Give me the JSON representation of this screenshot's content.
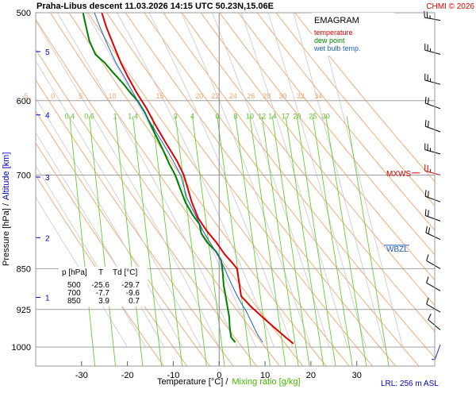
{
  "header": {
    "title": "Praha-Libus   descent   11.03.2026 14:15 UTC  50.23N,15.06E",
    "copyright": "CHMI © 2026"
  },
  "legend": {
    "title": "EMAGRAM",
    "items": [
      {
        "label": "temperature",
        "color": "#e00000"
      },
      {
        "label": "dew point",
        "color": "#008000"
      },
      {
        "label": "wet bulb temp.",
        "color": "#2060c0"
      }
    ]
  },
  "axes": {
    "xlabel_part1": "Temperature [°C]  /",
    "xlabel_part2": "Mixing ratio [g/kg]",
    "ylabel_part1": "Pressure [hPa]  /",
    "ylabel_part2": "Altitude [km]",
    "lrl": "LRL: 256 m ASL"
  },
  "stats_table": {
    "headers": [
      "p [hPa]",
      "T",
      "Td [°C]"
    ],
    "rows": [
      [
        "500",
        "-25.6",
        "-29.7"
      ],
      [
        "700",
        "-7.7",
        "-9.6"
      ],
      [
        "850",
        "3.9",
        "0.7"
      ]
    ]
  },
  "markers": {
    "mxws": "MXWS",
    "wbzl": "WBZL"
  },
  "colors": {
    "temperature": "#e00000",
    "dewpoint": "#008000",
    "wetbulb": "#2060c0",
    "dry_adiabat": "#f4a46a",
    "moist_adiabat": "#c8c8c8",
    "mixing_ratio": "#66cc33",
    "isobar": "#a0a0a0",
    "altitude": "#0000c0",
    "wind": "#000000",
    "wind_highlight": "#d00000",
    "wind_low": "#2020c0"
  },
  "chart_data": {
    "type": "line",
    "title": "EMAGRAM",
    "xlabel": "Temperature [°C] / Mixing ratio [g/kg]",
    "ylabel": "Pressure [hPa] / Altitude [km]",
    "xlim": [
      -40,
      47
    ],
    "ylim": [
      1040,
      500
    ],
    "log_y": true,
    "x_ticks": [
      -30,
      -20,
      -10,
      0,
      10,
      20,
      30
    ],
    "pressure_ticks": [
      500,
      600,
      700,
      850,
      925,
      1000
    ],
    "altitude_ticks": [
      {
        "label": "1",
        "p": 902
      },
      {
        "label": "2",
        "p": 797
      },
      {
        "label": "3",
        "p": 703
      },
      {
        "label": "4",
        "p": 618
      },
      {
        "label": "5",
        "p": 542
      }
    ],
    "dry_adiabats_theta_c": [
      -15,
      -10,
      -5,
      0,
      5,
      10,
      15,
      20,
      25,
      30,
      35,
      40,
      45,
      50,
      55,
      60,
      65,
      70,
      75,
      80
    ],
    "dry_adiabat_labels": [
      "-5",
      "0",
      "5",
      "10",
      "15",
      "20",
      "22",
      "24",
      "26",
      "28",
      "30",
      "32",
      "34"
    ],
    "mixing_ratio_lines_gkg": [
      0.4,
      0.6,
      1,
      1.4,
      2,
      3,
      4,
      6,
      8,
      10,
      12,
      14,
      17,
      20,
      25,
      30,
      40
    ],
    "mixing_ratio_labels": [
      "0.4",
      "0.6",
      "1",
      "1.4",
      "3",
      "4",
      "6",
      "8",
      "10",
      "12",
      "14",
      "17",
      "20",
      "25",
      "30"
    ],
    "series": [
      {
        "name": "temperature",
        "points": [
          [
            16.2,
            993
          ],
          [
            14.5,
            980
          ],
          [
            12.0,
            960
          ],
          [
            9.5,
            940
          ],
          [
            7.0,
            920
          ],
          [
            4.8,
            900
          ],
          [
            3.9,
            850
          ],
          [
            2.9,
            840
          ],
          [
            1.2,
            825
          ],
          [
            -0.6,
            805
          ],
          [
            -2.8,
            785
          ],
          [
            -4.6,
            765
          ],
          [
            -6.0,
            740
          ],
          [
            -7.7,
            700
          ],
          [
            -9.2,
            680
          ],
          [
            -11.6,
            655
          ],
          [
            -14.0,
            630
          ],
          [
            -15.8,
            610
          ],
          [
            -18.0,
            590
          ],
          [
            -20.0,
            570
          ],
          [
            -21.4,
            555
          ],
          [
            -23.0,
            535
          ],
          [
            -24.6,
            515
          ],
          [
            -25.6,
            500
          ]
        ]
      },
      {
        "name": "dew point",
        "points": [
          [
            3.5,
            990
          ],
          [
            2.6,
            980
          ],
          [
            2.3,
            960
          ],
          [
            2.2,
            940
          ],
          [
            1.8,
            920
          ],
          [
            1.4,
            900
          ],
          [
            1.0,
            880
          ],
          [
            0.7,
            850
          ],
          [
            0.4,
            835
          ],
          [
            -0.7,
            820
          ],
          [
            -2.6,
            805
          ],
          [
            -3.9,
            790
          ],
          [
            -4.3,
            775
          ],
          [
            -5.8,
            760
          ],
          [
            -7.4,
            740
          ],
          [
            -8.5,
            720
          ],
          [
            -9.6,
            700
          ],
          [
            -10.8,
            685
          ],
          [
            -12.2,
            665
          ],
          [
            -14.2,
            640
          ],
          [
            -16.2,
            615
          ],
          [
            -17.8,
            600
          ],
          [
            -19.4,
            590
          ],
          [
            -20.8,
            580
          ],
          [
            -23.3,
            565
          ],
          [
            -24.9,
            555
          ],
          [
            -27.0,
            545
          ],
          [
            -28.3,
            530
          ],
          [
            -29.0,
            515
          ],
          [
            -29.7,
            500
          ]
        ]
      },
      {
        "name": "wet bulb temp.",
        "points": [
          [
            9.5,
            990
          ],
          [
            8.4,
            975
          ],
          [
            7.6,
            960
          ],
          [
            6.8,
            945
          ],
          [
            6.0,
            930
          ],
          [
            4.6,
            910
          ],
          [
            3.4,
            890
          ],
          [
            2.0,
            865
          ],
          [
            1.2,
            850
          ],
          [
            0.0,
            830
          ],
          [
            -2.0,
            805
          ],
          [
            -3.6,
            785
          ],
          [
            -5.2,
            760
          ],
          [
            -7.0,
            735
          ],
          [
            -8.4,
            700
          ],
          [
            -10.0,
            680
          ],
          [
            -12.3,
            655
          ],
          [
            -14.8,
            630
          ],
          [
            -16.8,
            610
          ],
          [
            -18.8,
            590
          ],
          [
            -20.8,
            570
          ],
          [
            -22.5,
            555
          ],
          [
            -24.3,
            535
          ],
          [
            -26.0,
            515
          ],
          [
            -27.2,
            500
          ]
        ]
      }
    ],
    "wind_levels": [
      {
        "p": 508,
        "dir": 280,
        "speed": 25
      },
      {
        "p": 545,
        "dir": 285,
        "speed": 25
      },
      {
        "p": 580,
        "dir": 285,
        "speed": 25
      },
      {
        "p": 610,
        "dir": 290,
        "speed": 20
      },
      {
        "p": 640,
        "dir": 290,
        "speed": 20
      },
      {
        "p": 670,
        "dir": 285,
        "speed": 25
      },
      {
        "p": 700,
        "dir": 285,
        "speed": 25
      },
      {
        "p": 740,
        "dir": 290,
        "speed": 20
      },
      {
        "p": 770,
        "dir": 290,
        "speed": 20
      },
      {
        "p": 800,
        "dir": 295,
        "speed": 20
      },
      {
        "p": 850,
        "dir": 300,
        "speed": 10
      },
      {
        "p": 890,
        "dir": 300,
        "speed": 10
      },
      {
        "p": 930,
        "dir": 300,
        "speed": 10
      },
      {
        "p": 965,
        "dir": 310,
        "speed": 10
      },
      {
        "p": 995,
        "dir": 200,
        "speed": 5
      }
    ],
    "mxws_p": 697,
    "wbzl_p": 815
  }
}
